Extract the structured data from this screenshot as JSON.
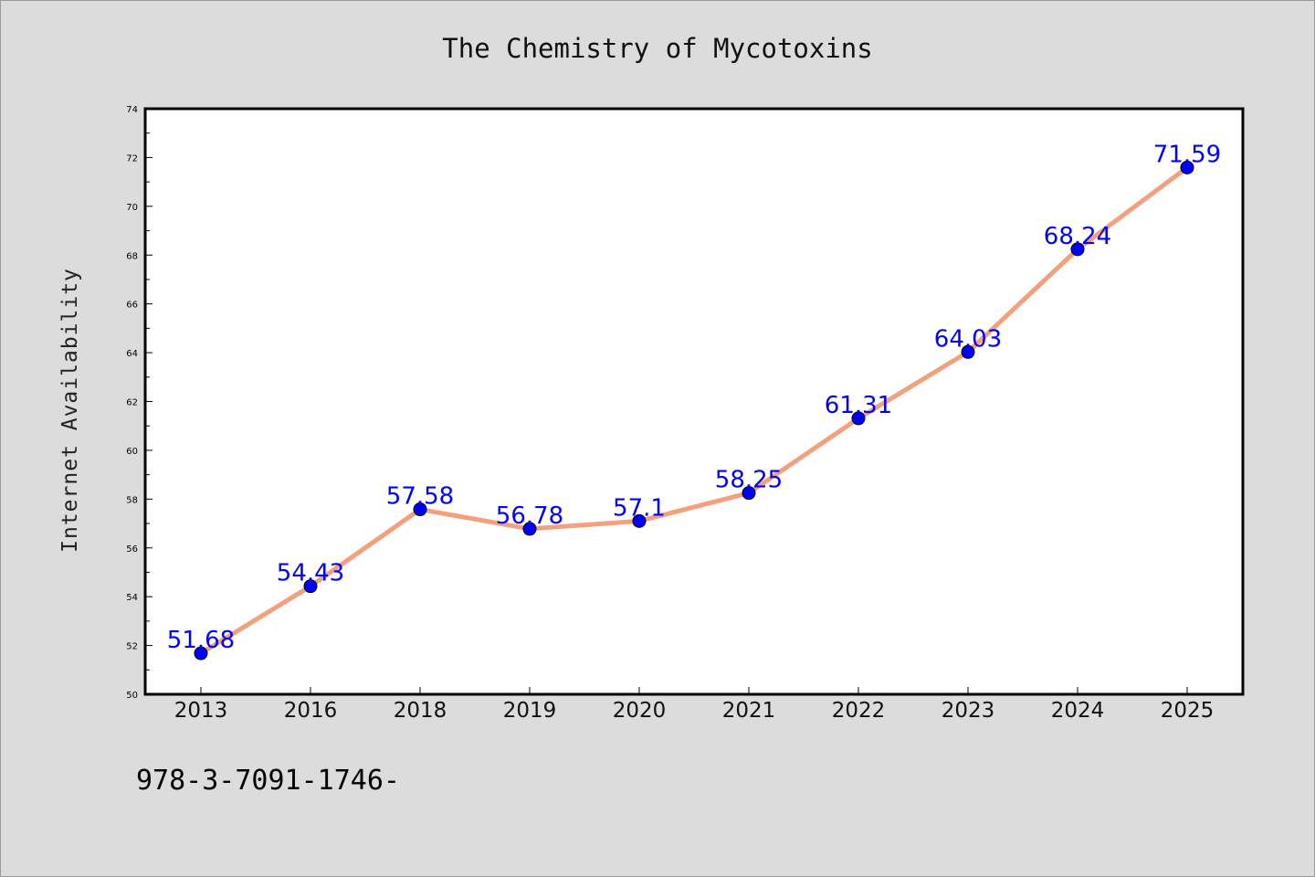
{
  "chart_data": {
    "type": "line",
    "title": "The Chemistry of Mycotoxins",
    "xlabel": "",
    "ylabel": "Internet Availability",
    "categories": [
      "2013",
      "2016",
      "2018",
      "2019",
      "2020",
      "2021",
      "2022",
      "2023",
      "2024",
      "2025"
    ],
    "values": [
      51.68,
      54.43,
      57.58,
      56.78,
      57.1,
      58.25,
      61.31,
      64.03,
      68.24,
      71.59
    ],
    "data_labels": [
      "51.68",
      "54.43",
      "57.58",
      "56.78",
      "57.1",
      "58.25",
      "61.31",
      "64.03",
      "68.24",
      "71.59"
    ],
    "ylim": [
      50,
      74
    ],
    "yticks": [
      50,
      52,
      54,
      56,
      58,
      60,
      62,
      64,
      66,
      68,
      70,
      72,
      74
    ],
    "grid": false,
    "line_color": "#f4a07c",
    "marker_color": "#0000ff",
    "label_color": "#0000ff"
  },
  "footer_text": "978-3-7091-1746-"
}
